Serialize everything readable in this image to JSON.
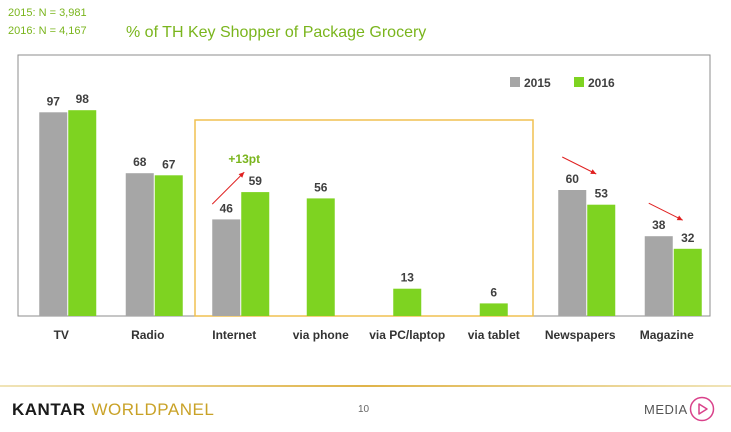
{
  "header": {
    "sample_2015": "2015: N = 3,981",
    "sample_2016": "2016: N = 4,167",
    "title": "% of TH Key Shopper of Package Grocery"
  },
  "colors": {
    "s2015": "#a6a6a6",
    "s2016": "#7ed321",
    "accent": "#7ab51d",
    "highlight_box": "#f0c050",
    "arrow": "#e02020"
  },
  "chart_data": {
    "type": "bar",
    "title": "% of TH Key Shopper of Package Grocery",
    "categories": [
      "TV",
      "Radio",
      "Internet",
      "via phone",
      "via PC/laptop",
      "via tablet",
      "Newspapers",
      "Magazine"
    ],
    "series": [
      {
        "name": "2015",
        "values": [
          97,
          68,
          46,
          null,
          null,
          null,
          60,
          38
        ]
      },
      {
        "name": "2016",
        "values": [
          98,
          67,
          59,
          56,
          13,
          6,
          53,
          32
        ]
      }
    ],
    "annotations": [
      {
        "category": "Internet",
        "text": "+13pt",
        "direction": "up"
      },
      {
        "category": "Newspapers",
        "direction": "down"
      },
      {
        "category": "Magazine",
        "direction": "down"
      }
    ],
    "highlight_group": [
      "Internet",
      "via phone",
      "via PC/laptop",
      "via tablet"
    ],
    "ylim": [
      0,
      100
    ],
    "legend": "top-right",
    "grid": false
  },
  "footer": {
    "brand_left": "KANTAR",
    "brand_right": "WORLDPANEL",
    "page": "10",
    "media": "MEDIA"
  }
}
